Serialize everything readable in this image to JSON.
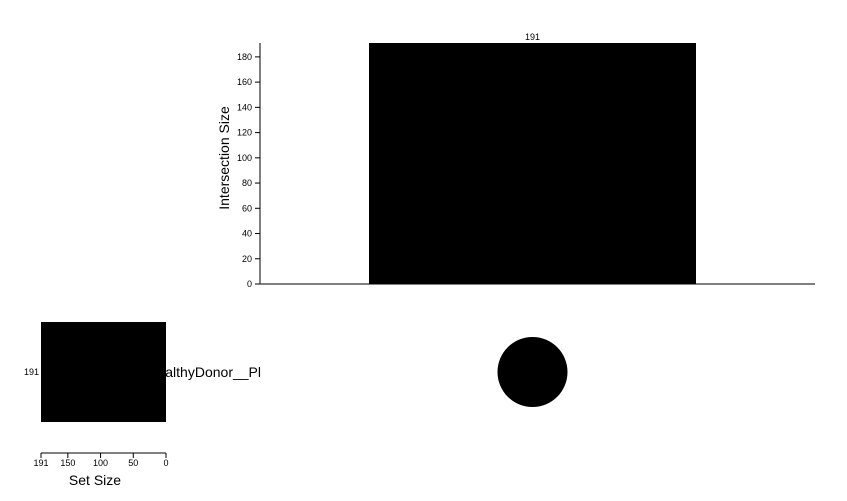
{
  "chart_data": {
    "type": "bar",
    "intersections": [
      {
        "label": "191",
        "value": 191,
        "sets": [
          "HealthyDonor__Pl"
        ]
      }
    ],
    "sets": [
      {
        "name": "HealthyDonor__Pl",
        "size": 191
      }
    ],
    "ylabel": "Intersection Size",
    "ylim": [
      0,
      191
    ],
    "yticks": [
      0,
      20,
      40,
      60,
      80,
      100,
      120,
      140,
      160,
      180
    ],
    "set_size_label": "Set Size",
    "set_size_ticks": [
      191,
      150,
      100,
      50,
      0
    ],
    "set_size_max": 191,
    "bar_color": "#000000",
    "dot_color": "#000000"
  }
}
